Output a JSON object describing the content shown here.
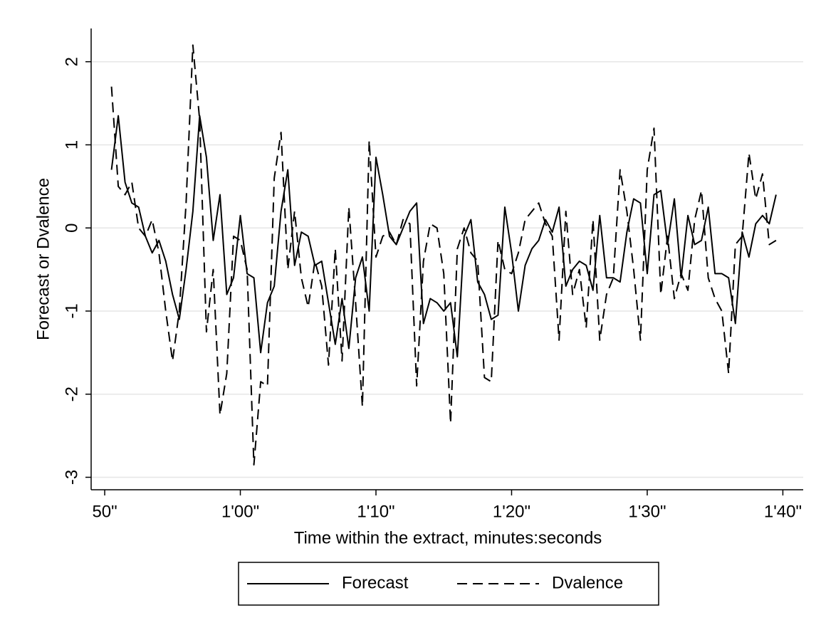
{
  "chart_data": {
    "type": "line",
    "xlabel": "Time within the extract, minutes:seconds",
    "ylabel": "Forecast or Dvalence",
    "x": [
      50.5,
      51,
      51.5,
      52,
      52.5,
      53,
      53.5,
      54,
      54.5,
      55,
      55.5,
      56,
      56.5,
      57,
      57.5,
      58,
      58.5,
      59,
      59.5,
      60,
      60.5,
      61,
      61.5,
      62,
      62.5,
      63,
      63.5,
      64,
      64.5,
      65,
      65.5,
      66,
      66.5,
      67,
      67.5,
      68,
      68.5,
      69,
      69.5,
      70,
      70.5,
      71,
      71.5,
      72,
      72.5,
      73,
      73.5,
      74,
      74.5,
      75,
      75.5,
      76,
      76.5,
      77,
      77.5,
      78,
      78.5,
      79,
      79.5,
      80,
      80.5,
      81,
      81.5,
      82,
      82.5,
      83,
      83.5,
      84,
      84.5,
      85,
      85.5,
      86,
      86.5,
      87,
      87.5,
      88,
      88.5,
      89,
      89.5,
      90,
      90.5,
      91,
      91.5,
      92,
      92.5,
      93,
      93.5,
      94,
      94.5,
      95,
      95.5,
      96,
      96.5,
      97,
      97.5,
      98,
      98.5,
      99,
      99.5
    ],
    "series": [
      {
        "name": "Forecast",
        "color": "#000000",
        "line_style": "solid",
        "values": [
          0.7,
          1.35,
          0.55,
          0.3,
          0.25,
          -0.1,
          -0.3,
          -0.15,
          -0.4,
          -0.8,
          -1.1,
          -0.5,
          0.2,
          1.35,
          0.85,
          -0.15,
          0.4,
          -0.8,
          -0.6,
          0.15,
          -0.55,
          -0.6,
          -1.5,
          -0.9,
          -0.7,
          0.2,
          0.7,
          -0.45,
          -0.05,
          -0.1,
          -0.45,
          -0.4,
          -0.9,
          -1.4,
          -0.85,
          -1.45,
          -0.6,
          -0.35,
          -1.0,
          0.85,
          0.4,
          -0.1,
          -0.2,
          0.0,
          0.2,
          0.3,
          -1.15,
          -0.85,
          -0.9,
          -1.0,
          -0.9,
          -1.55,
          -0.1,
          0.1,
          -0.65,
          -0.8,
          -1.1,
          -1.05,
          0.25,
          -0.3,
          -1.0,
          -0.45,
          -0.25,
          -0.15,
          0.1,
          -0.05,
          0.25,
          -0.7,
          -0.5,
          -0.4,
          -0.45,
          -0.75,
          0.15,
          -0.6,
          -0.6,
          -0.65,
          -0.05,
          0.35,
          0.3,
          -0.55,
          0.4,
          0.45,
          -0.2,
          0.35,
          -0.6,
          0.15,
          -0.2,
          -0.15,
          0.25,
          -0.55,
          -0.55,
          -0.6,
          -1.15,
          -0.05,
          -0.35,
          0.05,
          0.15,
          0.05,
          0.4
        ]
      },
      {
        "name": "Dvalence",
        "color": "#000000",
        "line_style": "dashed",
        "values": [
          1.7,
          0.5,
          0.4,
          0.55,
          0.0,
          -0.1,
          0.1,
          -0.3,
          -1.0,
          -1.6,
          -1.0,
          0.3,
          2.2,
          1.3,
          -1.25,
          -0.5,
          -2.25,
          -1.75,
          -0.1,
          -0.15,
          -0.5,
          -2.85,
          -1.85,
          -1.9,
          0.6,
          1.15,
          -0.5,
          0.2,
          -0.6,
          -0.95,
          -0.4,
          -0.7,
          -1.65,
          -0.25,
          -1.6,
          0.25,
          -0.9,
          -2.15,
          1.05,
          -0.35,
          -0.1,
          -0.05,
          -0.2,
          0.1,
          0.05,
          -1.9,
          -0.4,
          0.05,
          0.0,
          -0.55,
          -2.35,
          -0.25,
          0.0,
          -0.3,
          -0.4,
          -1.8,
          -1.85,
          -0.15,
          -0.5,
          -0.55,
          -0.3,
          0.1,
          0.2,
          0.3,
          0.05,
          -0.1,
          -1.35,
          0.2,
          -0.8,
          -0.5,
          -1.2,
          0.1,
          -1.35,
          -0.8,
          -0.6,
          0.7,
          0.2,
          -0.5,
          -1.35,
          0.7,
          1.2,
          -0.8,
          -0.1,
          -0.85,
          -0.55,
          -0.75,
          0.1,
          0.45,
          -0.6,
          -0.85,
          -1.0,
          -1.75,
          -0.2,
          -0.1,
          0.9,
          0.35,
          0.65,
          -0.2,
          -0.15
        ]
      }
    ],
    "xlim": [
      49,
      101.5
    ],
    "xticks": [
      {
        "value": 50,
        "label": "50\""
      },
      {
        "value": 60,
        "label": "1'00\""
      },
      {
        "value": 70,
        "label": "1'10\""
      },
      {
        "value": 80,
        "label": "1'20\""
      },
      {
        "value": 90,
        "label": "1'30\""
      },
      {
        "value": 100,
        "label": "1'40\""
      }
    ],
    "ylim": [
      -3.15,
      2.4
    ],
    "yticks": [
      -3,
      -2,
      -1,
      0,
      1,
      2
    ],
    "grid": true,
    "legend": "bottom"
  }
}
